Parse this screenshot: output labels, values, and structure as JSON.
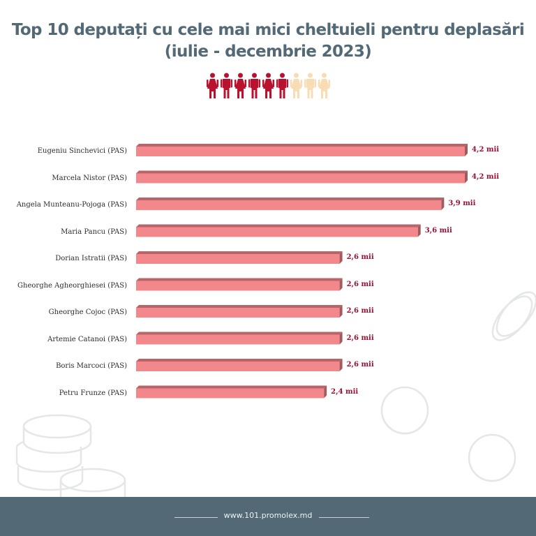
{
  "title_line1": "Top 10 deputați cu cele mai mici cheltuieli pentru deplasări",
  "title_line2": "(iulie - decembrie 2023)",
  "people_icons": [
    {
      "type": "woman",
      "color": "#b8122e"
    },
    {
      "type": "man",
      "color": "#b8122e"
    },
    {
      "type": "woman",
      "color": "#b8122e"
    },
    {
      "type": "man",
      "color": "#b8122e"
    },
    {
      "type": "woman",
      "color": "#b8122e"
    },
    {
      "type": "man",
      "color": "#b8122e"
    },
    {
      "type": "woman",
      "color": "#f7dcb4"
    },
    {
      "type": "man",
      "color": "#f7dcb4"
    },
    {
      "type": "woman",
      "color": "#f7dcb4"
    }
  ],
  "colors": {
    "bar_front": "#f2888c",
    "bar_top": "#b8656a",
    "bar_side": "#a25a5e",
    "value_text": "#9b1032",
    "footer_bg": "#536a76"
  },
  "footer": {
    "url": "www.101.promolex.md"
  },
  "chart_data": {
    "type": "bar",
    "orientation": "horizontal",
    "title": "Top 10 deputați cu cele mai mici cheltuieli pentru deplasări (iulie - decembrie 2023)",
    "xlabel": "",
    "ylabel": "",
    "unit": "mii",
    "categories": [
      "Eugeniu Sinchevici (PAS)",
      "Marcela Nistor (PAS)",
      "Angela Munteanu-Pojoga (PAS)",
      "Maria Pancu (PAS)",
      "Dorian Istratii (PAS)",
      "Gheorghe Agheorghiesei (PAS)",
      "Gheorghe Cojoc (PAS)",
      "Artemie Catanoi (PAS)",
      "Boris Marcoci (PAS)",
      "Petru Frunze (PAS)"
    ],
    "values": [
      4.2,
      4.2,
      3.9,
      3.6,
      2.6,
      2.6,
      2.6,
      2.6,
      2.6,
      2.4
    ],
    "value_labels": [
      "4,2 mii",
      "4,2 mii",
      "3,9 mii",
      "3,6 mii",
      "2,6 mii",
      "2,6 mii",
      "2,6 mii",
      "2,6 mii",
      "2,6 mii",
      "2,4 mii"
    ],
    "xlim": [
      0,
      4.2
    ],
    "grid": false,
    "legend": "none"
  }
}
